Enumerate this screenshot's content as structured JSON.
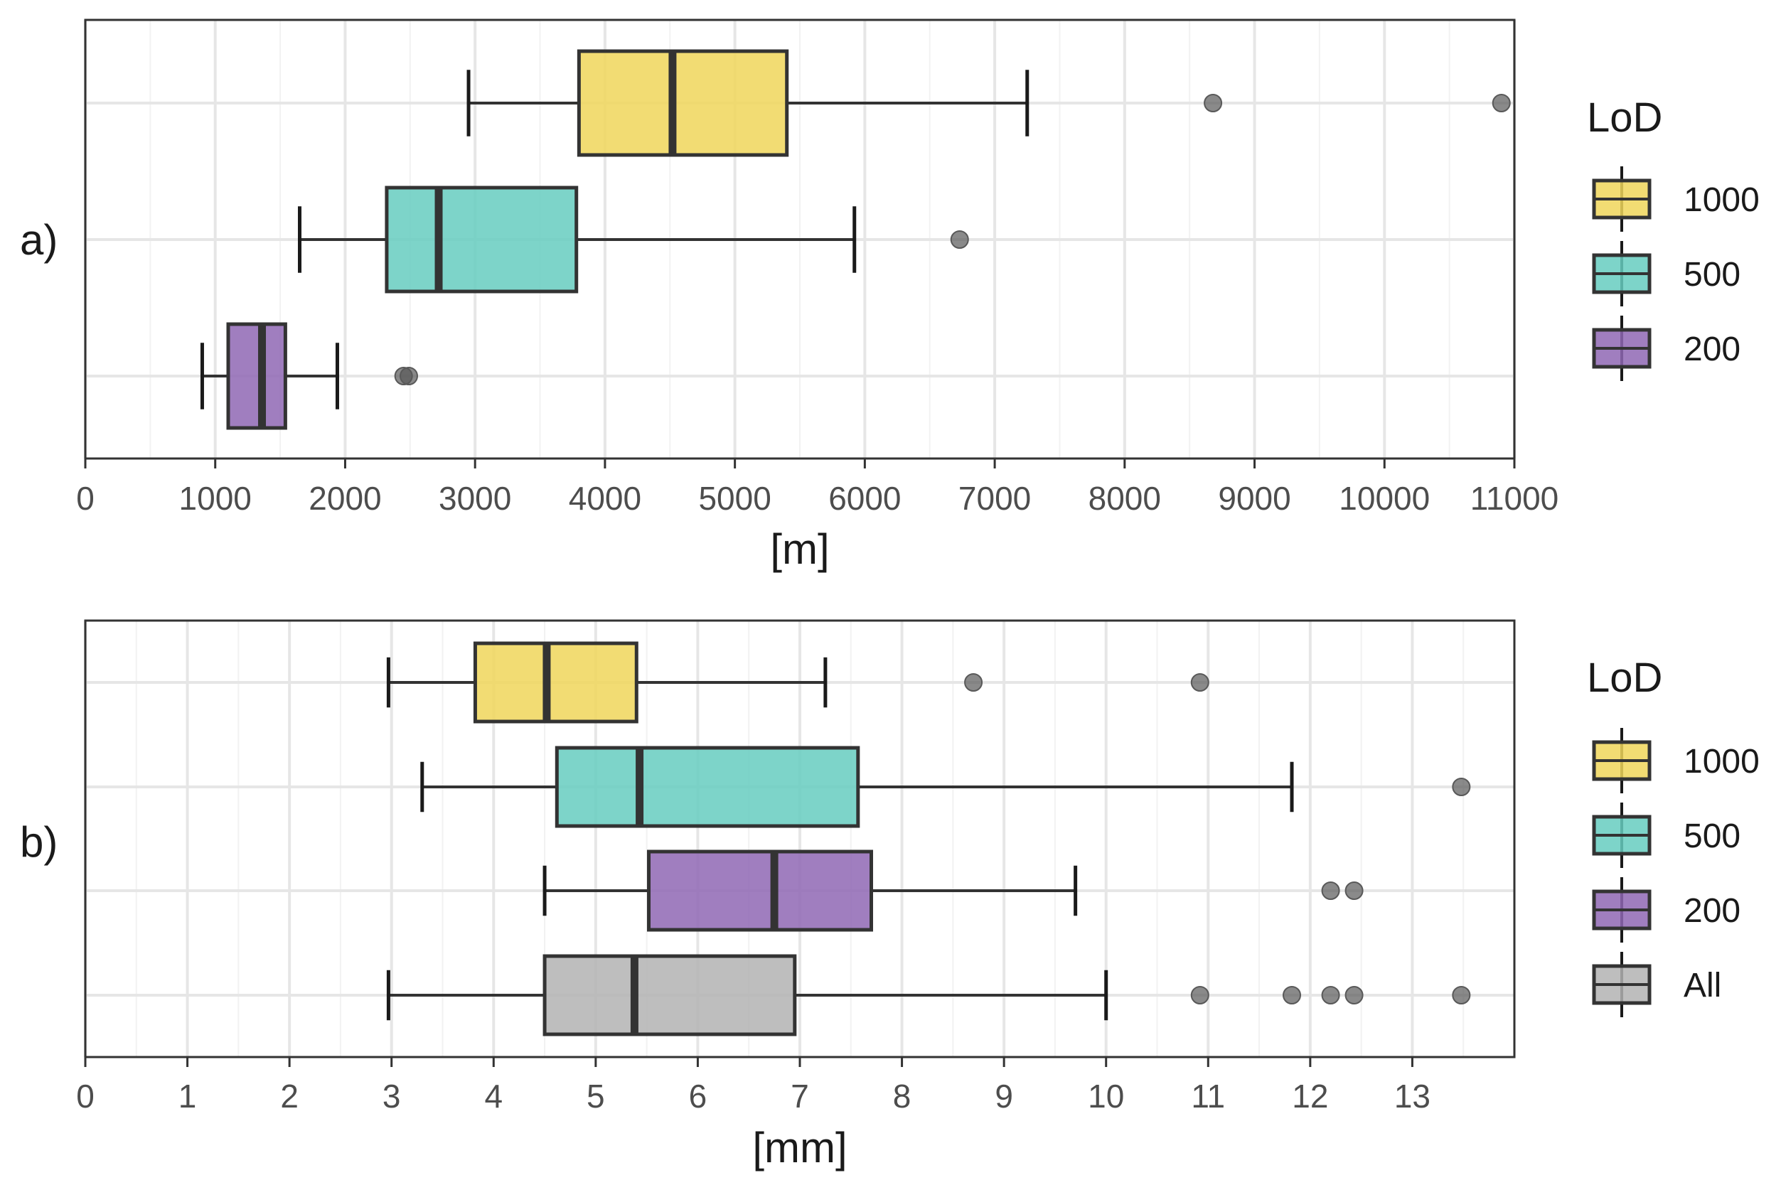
{
  "chart_data": [
    {
      "type": "boxplot",
      "panel_label": "a)",
      "orientation": "horizontal",
      "xlabel": "[m]",
      "xlim": [
        0,
        11000
      ],
      "major_ticks": [
        0,
        1000,
        2000,
        3000,
        4000,
        5000,
        6000,
        7000,
        8000,
        9000,
        10000,
        11000
      ],
      "minor_ticks": [
        500,
        1500,
        2500,
        3500,
        4500,
        5500,
        6500,
        7500,
        8500,
        9500,
        10500
      ],
      "grid": true,
      "legend": {
        "title": "LoD",
        "placement": "right",
        "entries": [
          {
            "label": "1000",
            "color": "#f0d65a"
          },
          {
            "label": "500",
            "color": "#66ccc0"
          },
          {
            "label": "200",
            "color": "#8f67b4"
          }
        ]
      },
      "boxes": [
        {
          "group": "1000",
          "color": "#f0d65a",
          "whisker_low": 2950,
          "q1": 3800,
          "median": 4520,
          "q3": 5400,
          "whisker_high": 7250,
          "outliers": [
            8680,
            10900
          ]
        },
        {
          "group": "500",
          "color": "#66ccc0",
          "whisker_low": 1650,
          "q1": 2320,
          "median": 2720,
          "q3": 3780,
          "whisker_high": 5920,
          "outliers": [
            6730
          ]
        },
        {
          "group": "200",
          "color": "#8f67b4",
          "whisker_low": 900,
          "q1": 1100,
          "median": 1360,
          "q3": 1540,
          "whisker_high": 1940,
          "outliers": [
            2450,
            2490
          ]
        }
      ]
    },
    {
      "type": "boxplot",
      "panel_label": "b)",
      "orientation": "horizontal",
      "xlabel": "[mm]",
      "xlim": [
        0,
        14
      ],
      "major_ticks": [
        0,
        1,
        2,
        3,
        4,
        5,
        6,
        7,
        8,
        9,
        10,
        11,
        12,
        13
      ],
      "minor_ticks": [
        0.5,
        1.5,
        2.5,
        3.5,
        4.5,
        5.5,
        6.5,
        7.5,
        8.5,
        9.5,
        10.5,
        11.5,
        12.5,
        13.5
      ],
      "grid": true,
      "legend": {
        "title": "LoD",
        "placement": "right",
        "entries": [
          {
            "label": "1000",
            "color": "#f0d65a"
          },
          {
            "label": "500",
            "color": "#66ccc0"
          },
          {
            "label": "200",
            "color": "#8f67b4"
          },
          {
            "label": "All",
            "color": "#b3b3b3"
          }
        ]
      },
      "boxes": [
        {
          "group": "1000",
          "color": "#f0d65a",
          "whisker_low": 2.97,
          "q1": 3.82,
          "median": 4.52,
          "q3": 5.4,
          "whisker_high": 7.25,
          "outliers": [
            8.7,
            10.92
          ]
        },
        {
          "group": "500",
          "color": "#66ccc0",
          "whisker_low": 3.3,
          "q1": 4.62,
          "median": 5.43,
          "q3": 7.57,
          "whisker_high": 11.82,
          "outliers": [
            13.48
          ]
        },
        {
          "group": "200",
          "color": "#8f67b4",
          "whisker_low": 4.5,
          "q1": 5.52,
          "median": 6.75,
          "q3": 7.7,
          "whisker_high": 9.7,
          "outliers": [
            12.2,
            12.43
          ]
        },
        {
          "group": "All",
          "color": "#b3b3b3",
          "whisker_low": 2.97,
          "q1": 4.5,
          "median": 5.38,
          "q3": 6.95,
          "whisker_high": 10.0,
          "outliers": [
            10.92,
            11.82,
            12.2,
            12.43,
            13.48
          ]
        }
      ]
    }
  ]
}
